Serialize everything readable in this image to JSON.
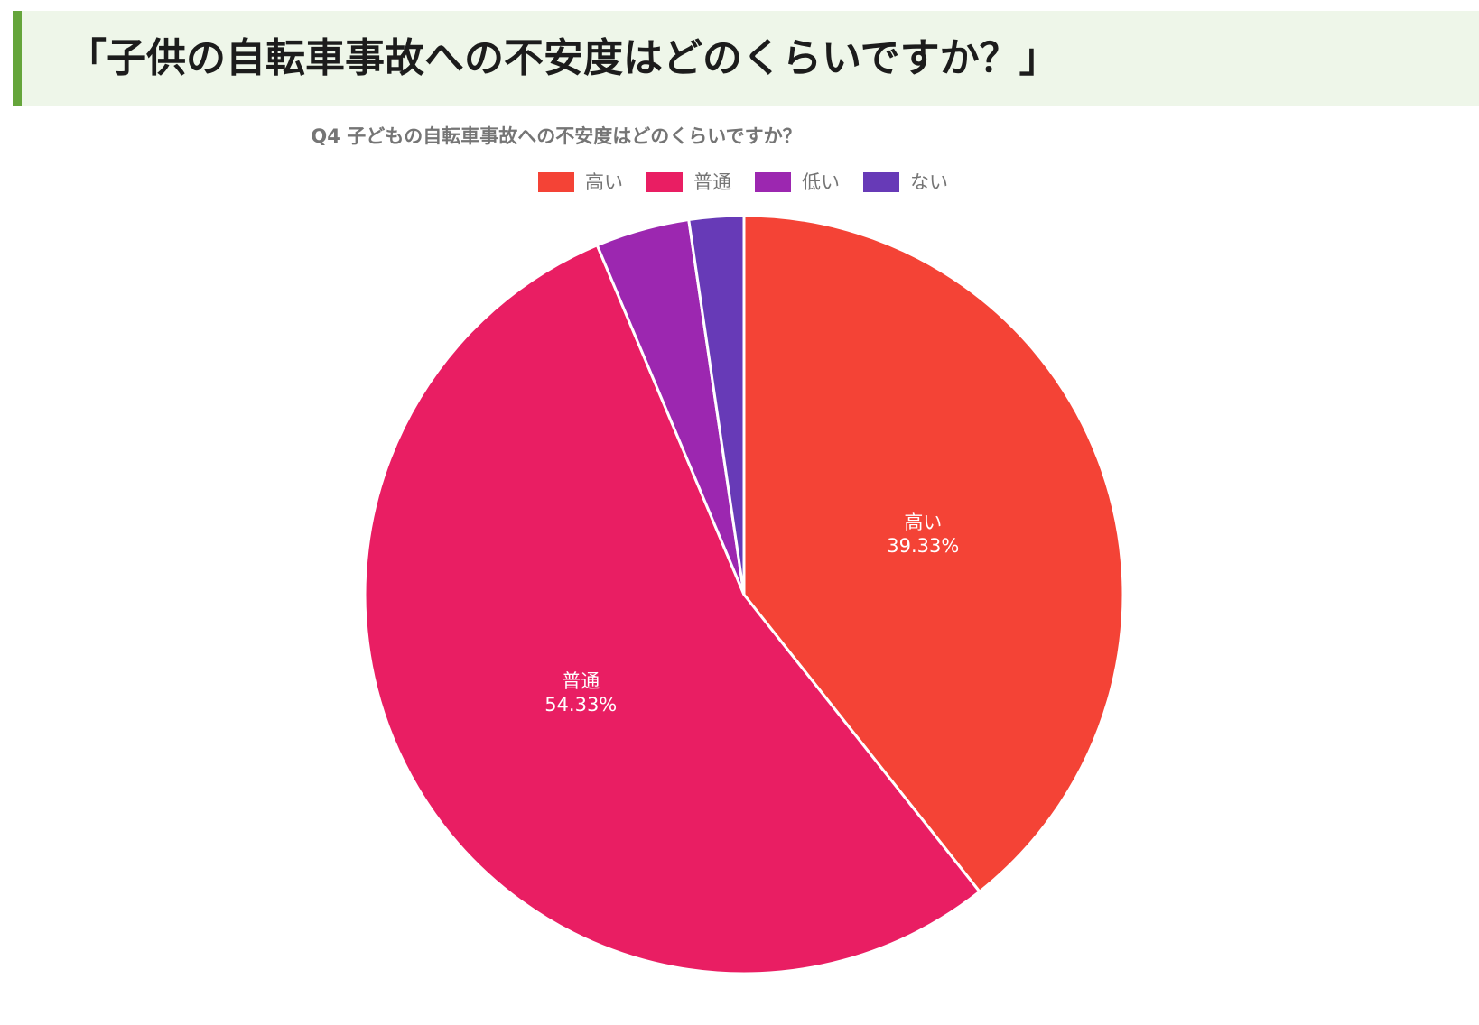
{
  "heading": "「子供の自転車事故への不安度はどのくらいですか？」",
  "chart_data": {
    "type": "pie",
    "title": "Q4 子どもの自転車事故への不安度はどのくらいですか？",
    "legend_position": "top-center",
    "slices": [
      {
        "label": "高い",
        "value": 39.33,
        "value_label": "39.33%",
        "color": "#f44336"
      },
      {
        "label": "普通",
        "value": 54.33,
        "value_label": "54.33%",
        "color": "#e91e63"
      },
      {
        "label": "低い",
        "value": 4.0,
        "color": "#9c27b0"
      },
      {
        "label": "ない",
        "value": 2.33,
        "color": "#673ab7"
      }
    ]
  }
}
